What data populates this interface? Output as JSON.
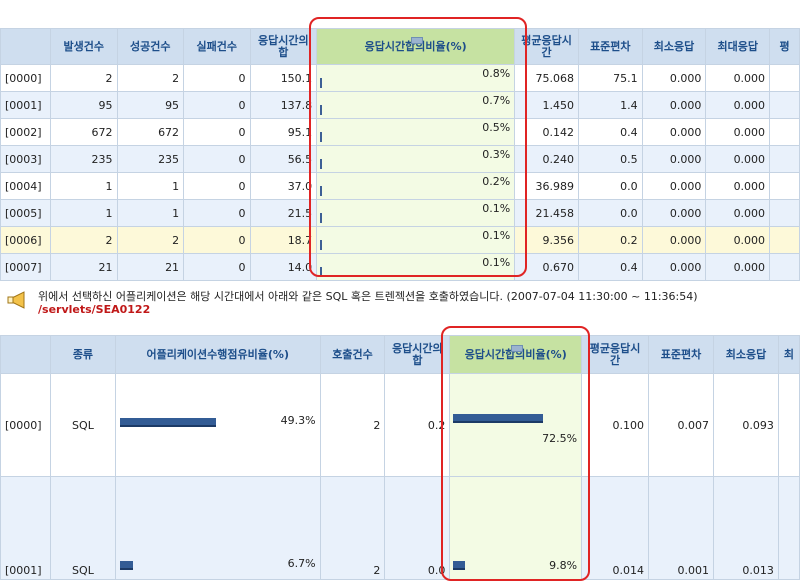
{
  "top_table": {
    "headers": [
      "",
      "발생건수",
      "성공건수",
      "실패건수",
      "응답시간의합",
      "응답시간합의비율(%)",
      "평균응답시간",
      "표준편차",
      "최소응답",
      "최대응답",
      "평"
    ],
    "rows": [
      {
        "id": "[0000]",
        "occ": "2",
        "succ": "2",
        "fail": "0",
        "sum": "150.1",
        "ratio": "0.8%",
        "avg": "75.068",
        "std": "75.1",
        "min": "0.000",
        "max": "0.000",
        "ratio_value": 0.8
      },
      {
        "id": "[0001]",
        "occ": "95",
        "succ": "95",
        "fail": "0",
        "sum": "137.8",
        "ratio": "0.7%",
        "avg": "1.450",
        "std": "1.4",
        "min": "0.000",
        "max": "0.000",
        "ratio_value": 0.7
      },
      {
        "id": "[0002]",
        "occ": "672",
        "succ": "672",
        "fail": "0",
        "sum": "95.1",
        "ratio": "0.5%",
        "avg": "0.142",
        "std": "0.4",
        "min": "0.000",
        "max": "0.000",
        "ratio_value": 0.5
      },
      {
        "id": "[0003]",
        "occ": "235",
        "succ": "235",
        "fail": "0",
        "sum": "56.5",
        "ratio": "0.3%",
        "avg": "0.240",
        "std": "0.5",
        "min": "0.000",
        "max": "0.000",
        "ratio_value": 0.3
      },
      {
        "id": "[0004]",
        "occ": "1",
        "succ": "1",
        "fail": "0",
        "sum": "37.0",
        "ratio": "0.2%",
        "avg": "36.989",
        "std": "0.0",
        "min": "0.000",
        "max": "0.000",
        "ratio_value": 0.2
      },
      {
        "id": "[0005]",
        "occ": "1",
        "succ": "1",
        "fail": "0",
        "sum": "21.5",
        "ratio": "0.1%",
        "avg": "21.458",
        "std": "0.0",
        "min": "0.000",
        "max": "0.000",
        "ratio_value": 0.1
      },
      {
        "id": "[0006]",
        "occ": "2",
        "succ": "2",
        "fail": "0",
        "sum": "18.7",
        "ratio": "0.1%",
        "avg": "9.356",
        "std": "0.2",
        "min": "0.000",
        "max": "0.000",
        "ratio_value": 0.1
      },
      {
        "id": "[0007]",
        "occ": "21",
        "succ": "21",
        "fail": "0",
        "sum": "14.0",
        "ratio": "0.1%",
        "avg": "0.670",
        "std": "0.4",
        "min": "0.000",
        "max": "0.000",
        "ratio_value": 0.1
      }
    ]
  },
  "message": {
    "text": "위에서 선택하신 어플리케이션은 해당 시간대에서 아래와 같은 SQL 혹은 트렌젝션을 호출하였습니다. (2007-07-04 11:30:00 ~ 11:36:54)",
    "link": "/servlets/SEA0122"
  },
  "bottom_table": {
    "headers": [
      "",
      "종류",
      "어플리케이션수행점유비율(%)",
      "호출건수",
      "응답시간의합",
      "응답시간합의비율(%)",
      "평균응답시간",
      "표준편차",
      "최소응답",
      "최"
    ],
    "rows": [
      {
        "id": "[0000]",
        "type": "SQL",
        "app_pct": "49.3%",
        "app_value": 49.3,
        "calls": "2",
        "sum": "0.2",
        "ratio": "72.5%",
        "ratio_value": 72.5,
        "avg": "0.100",
        "std": "0.007",
        "min": "0.093"
      },
      {
        "id": "[0001]",
        "type": "SQL",
        "app_pct": "6.7%",
        "app_value": 6.7,
        "calls": "2",
        "sum": "0.0",
        "ratio": "9.8%",
        "ratio_value": 9.8,
        "avg": "0.014",
        "std": "0.001",
        "min": "0.013"
      }
    ]
  },
  "colors": {
    "highlight_border": "#e02424",
    "bar": "#335c95",
    "header_bg": "#cfdeef",
    "highlight_header_bg": "#c6e2a2"
  }
}
